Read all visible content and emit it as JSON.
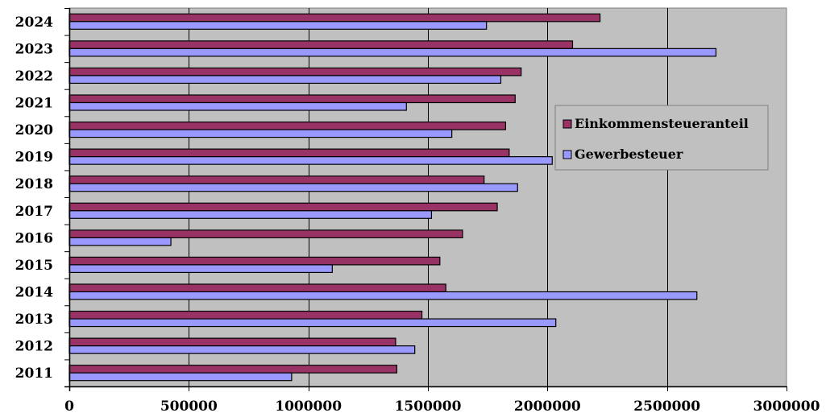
{
  "chart_data": {
    "type": "bar",
    "orientation": "horizontal",
    "categories": [
      "2011",
      "2012",
      "2013",
      "2014",
      "2015",
      "2016",
      "2017",
      "2018",
      "2019",
      "2020",
      "2021",
      "2022",
      "2023",
      "2024"
    ],
    "series": [
      {
        "name": "Einkommensteueranteil",
        "color": "#993366",
        "values": [
          1370000,
          1365000,
          1475000,
          1575000,
          1550000,
          1645000,
          1790000,
          1735000,
          1840000,
          1825000,
          1865000,
          1890000,
          2105000,
          2220000
        ]
      },
      {
        "name": "Gewerbesteuer",
        "color": "#9999FF",
        "values": [
          930000,
          1445000,
          2035000,
          2625000,
          1100000,
          425000,
          1515000,
          1875000,
          2020000,
          1600000,
          1410000,
          1805000,
          2705000,
          1745000
        ]
      }
    ],
    "xlim": [
      0,
      3000000
    ],
    "xticks": [
      0,
      500000,
      1000000,
      1500000,
      2000000,
      2500000,
      3000000
    ],
    "grid": "vertical",
    "plot_background": "#C0C0C0",
    "legend_position": "right-middle"
  }
}
